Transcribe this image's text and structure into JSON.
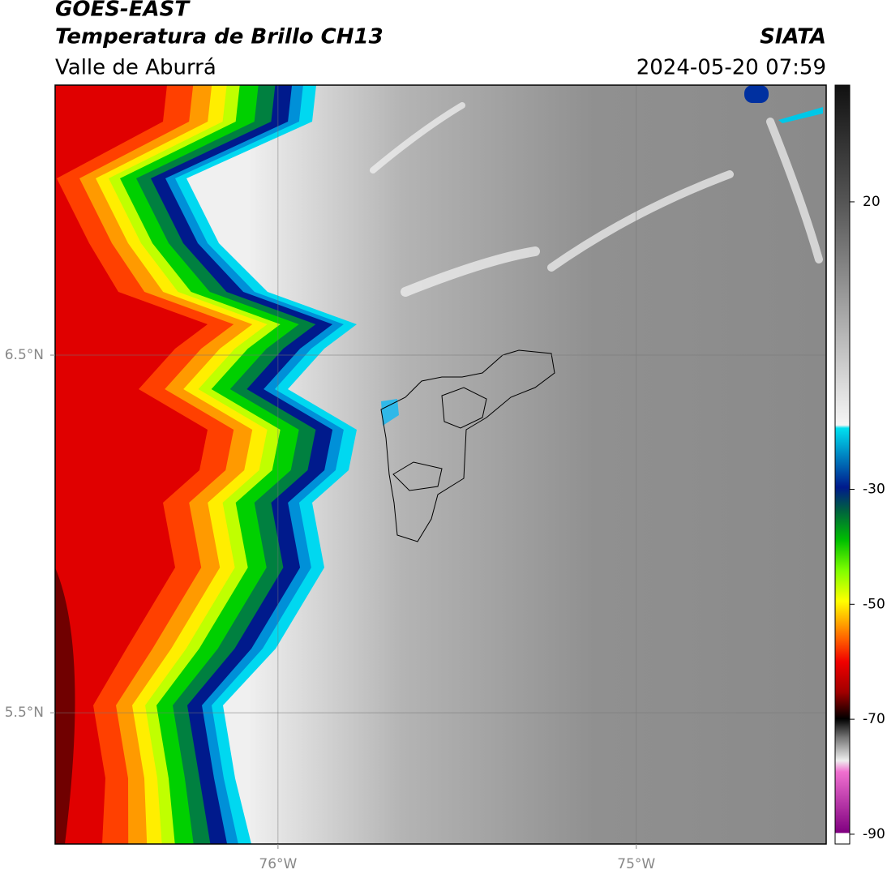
{
  "header": {
    "title": "GOES-EAST",
    "subtitle": "Temperatura de Brillo CH13",
    "region": "Valle de Aburrá",
    "source": "SIATA",
    "timestamp": "2024-05-20 07:59"
  },
  "map": {
    "xlim": [
      -76.622,
      -74.47
    ],
    "ylim": [
      5.133,
      7.255
    ],
    "xticks": [
      {
        "value": -76,
        "label": "76°W"
      },
      {
        "value": -75,
        "label": "75°W"
      }
    ],
    "yticks": [
      {
        "value": 6.5,
        "label": "6.5°N"
      },
      {
        "value": 5.5,
        "label": "5.5°N"
      }
    ],
    "grid": true
  },
  "colorbar": {
    "lim": [
      -91.7,
      40.3
    ],
    "ticks": [
      20,
      -30,
      -50,
      -70,
      -90
    ]
  }
}
